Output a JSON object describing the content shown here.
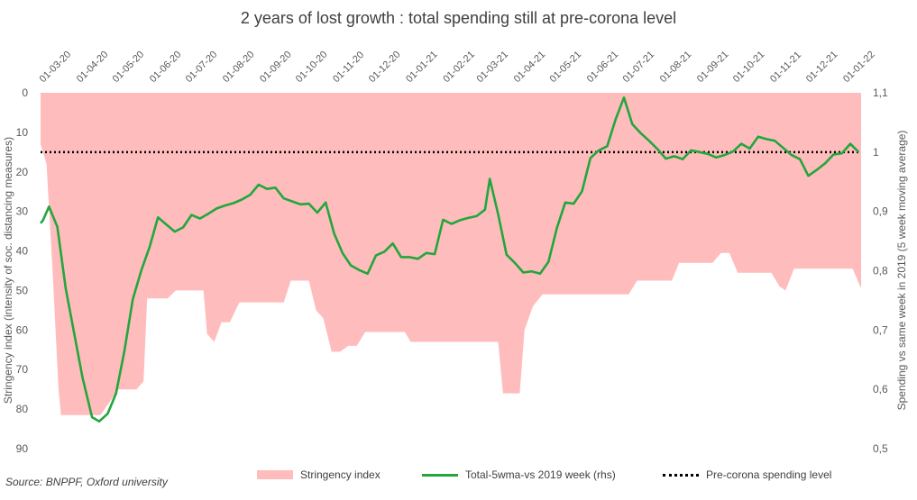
{
  "chart_data": {
    "type": "area",
    "title": "2 years of lost growth : total spending still at pre-corona level",
    "source": "Source: BNPPF, Oxford university",
    "ylabel_left": "Stringency index (intensity of soc. distancing measures)",
    "ylabel_right": "Spending vs same week in 2019  (5 week moving average)",
    "left_axis": {
      "min": 0,
      "max": 90,
      "ticks": [
        "0",
        "10",
        "20",
        "30",
        "40",
        "50",
        "60",
        "70",
        "80",
        "90"
      ],
      "inverted": true
    },
    "right_axis": {
      "min": 0.5,
      "max": 1.1,
      "ticks": [
        "0,5",
        "0,6",
        "0,7",
        "0,8",
        "0,9",
        "1",
        "1,1"
      ]
    },
    "x_axis": {
      "start": "2020-03-01",
      "end": "2022-01-15",
      "ticks": [
        "01-03-20",
        "01-04-20",
        "01-05-20",
        "01-06-20",
        "01-07-20",
        "01-08-20",
        "01-09-20",
        "01-10-20",
        "01-11-20",
        "01-12-20",
        "01-01-21",
        "01-02-21",
        "01-03-21",
        "01-04-21",
        "01-05-21",
        "01-06-21",
        "01-07-21",
        "01-08-21",
        "01-09-21",
        "01-10-21",
        "01-11-21",
        "01-12-21",
        "01-01-22"
      ]
    },
    "legend": [
      "Stringency index",
      "Total-5wma-vs 2019 week (rhs)",
      "Pre-corona spending level"
    ],
    "reference_level": 1,
    "series": [
      {
        "name": "Stringency index",
        "axis": "left",
        "points": [
          [
            "2020-03-01",
            13
          ],
          [
            "2020-03-06",
            18
          ],
          [
            "2020-03-11",
            45
          ],
          [
            "2020-03-16",
            75
          ],
          [
            "2020-03-18",
            81.5
          ],
          [
            "2020-04-20",
            81.5
          ],
          [
            "2020-05-05",
            75
          ],
          [
            "2020-05-20",
            75
          ],
          [
            "2020-05-26",
            73
          ],
          [
            "2020-05-29",
            52
          ],
          [
            "2020-06-15",
            52
          ],
          [
            "2020-06-22",
            50
          ],
          [
            "2020-07-15",
            50
          ],
          [
            "2020-07-18",
            61
          ],
          [
            "2020-07-24",
            63
          ],
          [
            "2020-07-30",
            58
          ],
          [
            "2020-08-06",
            58
          ],
          [
            "2020-08-14",
            53
          ],
          [
            "2020-09-20",
            53
          ],
          [
            "2020-09-26",
            47.5
          ],
          [
            "2020-10-11",
            47.5
          ],
          [
            "2020-10-17",
            55
          ],
          [
            "2020-10-23",
            57
          ],
          [
            "2020-10-30",
            65.5
          ],
          [
            "2020-11-06",
            65.5
          ],
          [
            "2020-11-13",
            64
          ],
          [
            "2020-11-20",
            64
          ],
          [
            "2020-11-27",
            60.5
          ],
          [
            "2020-12-30",
            60.5
          ],
          [
            "2021-01-04",
            63
          ],
          [
            "2021-03-18",
            63
          ],
          [
            "2021-03-22",
            76
          ],
          [
            "2021-04-05",
            76
          ],
          [
            "2021-04-09",
            60
          ],
          [
            "2021-04-16",
            54
          ],
          [
            "2021-04-24",
            51
          ],
          [
            "2021-07-05",
            51
          ],
          [
            "2021-07-12",
            47.5
          ],
          [
            "2021-08-10",
            47.5
          ],
          [
            "2021-08-16",
            43
          ],
          [
            "2021-09-13",
            43
          ],
          [
            "2021-09-20",
            40.5
          ],
          [
            "2021-09-27",
            40.5
          ],
          [
            "2021-10-04",
            45.5
          ],
          [
            "2021-11-01",
            45.5
          ],
          [
            "2021-11-08",
            49
          ],
          [
            "2021-11-13",
            50
          ],
          [
            "2021-11-20",
            44.5
          ],
          [
            "2022-01-08",
            44.5
          ],
          [
            "2022-01-15",
            49.5
          ]
        ]
      },
      {
        "name": "Total-5wma-vs 2019 week (rhs)",
        "axis": "right",
        "points": [
          [
            "2020-03-01",
            0.88
          ],
          [
            "2020-03-03",
            0.885
          ],
          [
            "2020-03-08",
            0.908
          ],
          [
            "2020-03-15",
            0.874
          ],
          [
            "2020-03-22",
            0.77
          ],
          [
            "2020-04-05",
            0.62
          ],
          [
            "2020-04-13",
            0.553
          ],
          [
            "2020-04-19",
            0.546
          ],
          [
            "2020-04-26",
            0.559
          ],
          [
            "2020-05-03",
            0.593
          ],
          [
            "2020-05-10",
            0.665
          ],
          [
            "2020-05-17",
            0.752
          ],
          [
            "2020-05-24",
            0.8
          ],
          [
            "2020-05-31",
            0.84
          ],
          [
            "2020-06-07",
            0.89
          ],
          [
            "2020-06-14",
            0.878
          ],
          [
            "2020-06-21",
            0.866
          ],
          [
            "2020-06-28",
            0.873
          ],
          [
            "2020-07-05",
            0.894
          ],
          [
            "2020-07-12",
            0.888
          ],
          [
            "2020-07-19",
            0.896
          ],
          [
            "2020-07-26",
            0.905
          ],
          [
            "2020-08-02",
            0.91
          ],
          [
            "2020-08-09",
            0.914
          ],
          [
            "2020-08-16",
            0.92
          ],
          [
            "2020-08-23",
            0.928
          ],
          [
            "2020-08-30",
            0.945
          ],
          [
            "2020-09-06",
            0.938
          ],
          [
            "2020-09-13",
            0.94
          ],
          [
            "2020-09-20",
            0.922
          ],
          [
            "2020-09-27",
            0.917
          ],
          [
            "2020-10-04",
            0.912
          ],
          [
            "2020-10-11",
            0.913
          ],
          [
            "2020-10-18",
            0.898
          ],
          [
            "2020-10-25",
            0.915
          ],
          [
            "2020-11-01",
            0.863
          ],
          [
            "2020-11-08",
            0.83
          ],
          [
            "2020-11-15",
            0.809
          ],
          [
            "2020-11-22",
            0.801
          ],
          [
            "2020-11-29",
            0.795
          ],
          [
            "2020-12-06",
            0.826
          ],
          [
            "2020-12-13",
            0.832
          ],
          [
            "2020-12-20",
            0.846
          ],
          [
            "2020-12-27",
            0.823
          ],
          [
            "2021-01-03",
            0.823
          ],
          [
            "2021-01-10",
            0.82
          ],
          [
            "2021-01-17",
            0.83
          ],
          [
            "2021-01-24",
            0.828
          ],
          [
            "2021-01-31",
            0.886
          ],
          [
            "2021-02-07",
            0.879
          ],
          [
            "2021-02-14",
            0.885
          ],
          [
            "2021-02-21",
            0.889
          ],
          [
            "2021-02-28",
            0.892
          ],
          [
            "2021-03-07",
            0.903
          ],
          [
            "2021-03-11",
            0.955
          ],
          [
            "2021-03-18",
            0.895
          ],
          [
            "2021-03-25",
            0.827
          ],
          [
            "2021-04-01",
            0.813
          ],
          [
            "2021-04-08",
            0.797
          ],
          [
            "2021-04-15",
            0.799
          ],
          [
            "2021-04-22",
            0.795
          ],
          [
            "2021-04-29",
            0.815
          ],
          [
            "2021-05-06",
            0.872
          ],
          [
            "2021-05-13",
            0.915
          ],
          [
            "2021-05-20",
            0.913
          ],
          [
            "2021-05-27",
            0.934
          ],
          [
            "2021-06-03",
            0.99
          ],
          [
            "2021-06-10",
            1.003
          ],
          [
            "2021-06-17",
            1.01
          ],
          [
            "2021-06-24",
            1.055
          ],
          [
            "2021-07-01",
            1.092
          ],
          [
            "2021-07-08",
            1.047
          ],
          [
            "2021-07-15",
            1.032
          ],
          [
            "2021-07-22",
            1.019
          ],
          [
            "2021-07-29",
            1.005
          ],
          [
            "2021-08-05",
            0.989
          ],
          [
            "2021-08-12",
            0.993
          ],
          [
            "2021-08-19",
            0.988
          ],
          [
            "2021-08-26",
            1.003
          ],
          [
            "2021-09-02",
            1.0
          ],
          [
            "2021-09-09",
            0.997
          ],
          [
            "2021-09-16",
            0.991
          ],
          [
            "2021-09-23",
            0.995
          ],
          [
            "2021-09-30",
            1.001
          ],
          [
            "2021-10-07",
            1.014
          ],
          [
            "2021-10-14",
            1.006
          ],
          [
            "2021-10-21",
            1.026
          ],
          [
            "2021-10-28",
            1.022
          ],
          [
            "2021-11-04",
            1.019
          ],
          [
            "2021-11-11",
            1.007
          ],
          [
            "2021-11-18",
            0.995
          ],
          [
            "2021-11-25",
            0.988
          ],
          [
            "2021-12-02",
            0.96
          ],
          [
            "2021-12-09",
            0.97
          ],
          [
            "2021-12-16",
            0.981
          ],
          [
            "2021-12-23",
            0.996
          ],
          [
            "2021-12-30",
            0.998
          ],
          [
            "2022-01-06",
            1.014
          ],
          [
            "2022-01-13",
            1.0
          ]
        ]
      }
    ]
  }
}
